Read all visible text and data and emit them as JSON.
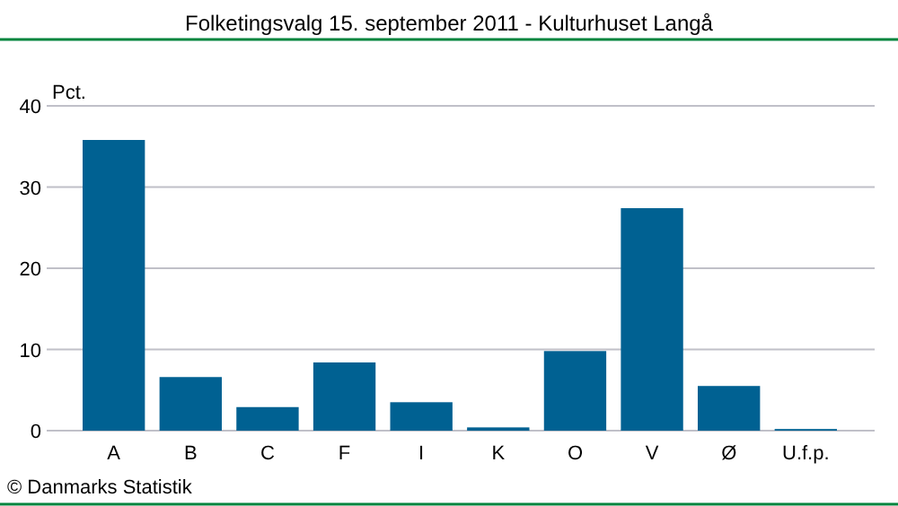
{
  "chart_data": {
    "type": "bar",
    "title": "Folketingsvalg 15. september 2011 - Kulturhuset Langå",
    "ylabel": "Pct.",
    "categories": [
      "A",
      "B",
      "C",
      "F",
      "I",
      "K",
      "O",
      "V",
      "Ø",
      "U.f.p."
    ],
    "values": [
      35.8,
      6.6,
      2.9,
      8.4,
      3.5,
      0.4,
      9.8,
      27.4,
      5.5,
      0.2
    ],
    "color": "#006192",
    "ylim": [
      0,
      40
    ],
    "yticks": [
      0,
      10,
      20,
      30,
      40
    ],
    "grid": "y",
    "annotations": [
      "© Danmarks Statistik"
    ]
  }
}
